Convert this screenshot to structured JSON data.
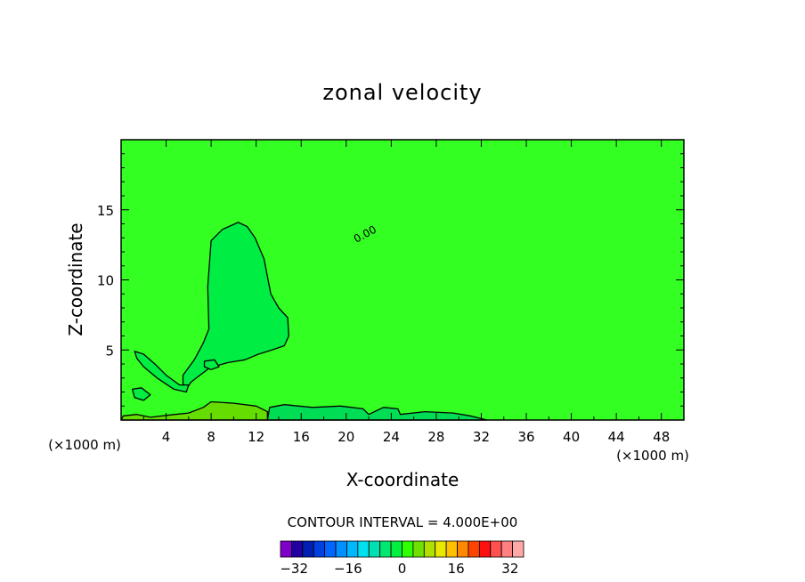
{
  "chart_data": {
    "type": "contour",
    "title": "zonal velocity",
    "xlabel": "X-coordinate",
    "ylabel": "Z-coordinate",
    "x_unit_left": "(×1000 m)",
    "x_unit_right": "(×1000 m)",
    "xlim": [
      0,
      50
    ],
    "ylim": [
      0,
      20
    ],
    "x_ticks": [
      4,
      8,
      12,
      16,
      20,
      24,
      28,
      32,
      36,
      40,
      44,
      48
    ],
    "y_ticks": [
      5,
      10,
      15
    ],
    "contour_label": "0.00",
    "contour_interval_text": "CONTOUR INTERVAL = 4.000E+00",
    "colorbar": {
      "min": -36,
      "max": 36,
      "step": 4,
      "tick_labels": [
        -32,
        -16,
        0,
        16,
        32
      ],
      "colors": [
        "#7f00c8",
        "#2200a0",
        "#0020b4",
        "#0040e0",
        "#0066ff",
        "#0090ff",
        "#00b8ff",
        "#00e0f0",
        "#00e0b0",
        "#00e870",
        "#00f040",
        "#30ff00",
        "#70e000",
        "#b0e000",
        "#e8e800",
        "#ffc000",
        "#ff8800",
        "#ff4400",
        "#ff1010",
        "#ff5050",
        "#ff8080",
        "#ffa8a8"
      ]
    },
    "background_fill": "#33ff22",
    "regions": [
      {
        "name": "upper-positive-plume",
        "fill": "#00ee44",
        "outline": [
          [
            8.0,
            12.8
          ],
          [
            9.0,
            13.6
          ],
          [
            10.4,
            14.1
          ],
          [
            11.2,
            13.8
          ],
          [
            11.9,
            13.0
          ],
          [
            12.7,
            11.5
          ],
          [
            13.3,
            9.0
          ],
          [
            14.0,
            8.0
          ],
          [
            14.8,
            7.3
          ],
          [
            14.9,
            6.0
          ],
          [
            14.5,
            5.3
          ],
          [
            13.4,
            5.0
          ],
          [
            12.2,
            4.7
          ],
          [
            11.0,
            4.3
          ],
          [
            9.5,
            4.1
          ],
          [
            8.6,
            3.9
          ],
          [
            8.0,
            3.8
          ],
          [
            7.0,
            3.2
          ],
          [
            6.2,
            2.7
          ],
          [
            5.8,
            2.2
          ],
          [
            5.5,
            2.6
          ],
          [
            5.5,
            3.2
          ],
          [
            6.5,
            4.3
          ],
          [
            7.3,
            5.5
          ],
          [
            7.8,
            6.5
          ],
          [
            7.7,
            9.5
          ],
          [
            8.0,
            12.8
          ]
        ]
      },
      {
        "name": "left-lobe",
        "fill": "#00ee44",
        "outline": [
          [
            1.2,
            4.9
          ],
          [
            2.0,
            4.7
          ],
          [
            3.0,
            4.0
          ],
          [
            4.0,
            3.2
          ],
          [
            5.2,
            2.5
          ],
          [
            6.0,
            2.5
          ],
          [
            5.8,
            2.0
          ],
          [
            4.7,
            2.2
          ],
          [
            3.2,
            3.0
          ],
          [
            2.0,
            3.8
          ],
          [
            1.4,
            4.4
          ],
          [
            1.2,
            4.9
          ]
        ]
      },
      {
        "name": "small-lobe-a",
        "fill": "#00ee44",
        "outline": [
          [
            1.0,
            2.2
          ],
          [
            1.8,
            2.3
          ],
          [
            2.6,
            1.8
          ],
          [
            2.0,
            1.4
          ],
          [
            1.2,
            1.6
          ],
          [
            1.0,
            2.2
          ]
        ]
      },
      {
        "name": "small-lobe-b",
        "fill": "#00ee44",
        "outline": [
          [
            7.4,
            4.2
          ],
          [
            8.3,
            4.3
          ],
          [
            8.7,
            3.8
          ],
          [
            8.0,
            3.6
          ],
          [
            7.4,
            3.8
          ],
          [
            7.4,
            4.2
          ]
        ]
      },
      {
        "name": "lower-right-band",
        "fill": "#00dd55",
        "outline": [
          [
            13.0,
            0.0
          ],
          [
            13.2,
            0.9
          ],
          [
            14.5,
            1.1
          ],
          [
            17.0,
            0.9
          ],
          [
            19.5,
            1.0
          ],
          [
            21.5,
            0.8
          ],
          [
            22.0,
            0.4
          ],
          [
            23.3,
            0.9
          ],
          [
            24.6,
            0.8
          ],
          [
            24.8,
            0.4
          ],
          [
            27.0,
            0.6
          ],
          [
            29.5,
            0.5
          ],
          [
            31.0,
            0.3
          ],
          [
            32.0,
            0.1
          ],
          [
            32.5,
            0.0
          ]
        ]
      },
      {
        "name": "lower-left-band",
        "fill": "#66dd00",
        "outline": [
          [
            0.0,
            0.0
          ],
          [
            0.2,
            0.3
          ],
          [
            1.4,
            0.4
          ],
          [
            2.6,
            0.2
          ],
          [
            4.8,
            0.4
          ],
          [
            6.0,
            0.5
          ],
          [
            7.3,
            0.9
          ],
          [
            8.0,
            1.3
          ],
          [
            10.0,
            1.2
          ],
          [
            12.0,
            1.0
          ],
          [
            13.0,
            0.6
          ],
          [
            13.0,
            0.0
          ]
        ]
      }
    ]
  }
}
